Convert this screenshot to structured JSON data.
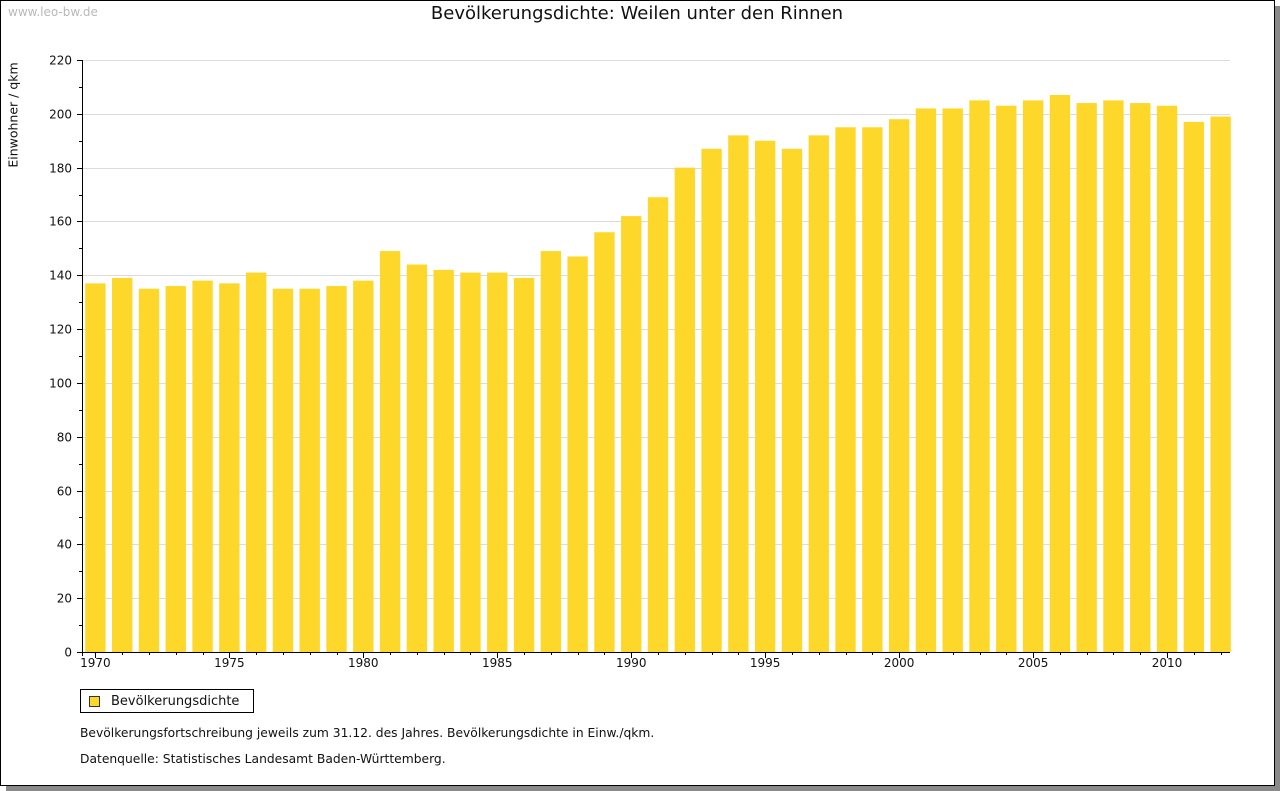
{
  "source_watermark": "www.leo-bw.de",
  "chart_data": {
    "type": "bar",
    "title": "Bevölkerungsdichte: Weilen unter den Rinnen",
    "ylabel": "Einwohner / qkm",
    "xlabel": "",
    "ylim": [
      0,
      220
    ],
    "y_ticks": [
      0,
      20,
      40,
      60,
      80,
      100,
      120,
      140,
      160,
      180,
      200,
      220
    ],
    "x_tick_labels": [
      "1970",
      "1975",
      "1980",
      "1985",
      "1990",
      "1995",
      "2000",
      "2005",
      "2010"
    ],
    "grid": true,
    "legend_position": "bottom-left",
    "categories": [
      1970,
      1971,
      1972,
      1973,
      1974,
      1975,
      1976,
      1977,
      1978,
      1979,
      1980,
      1981,
      1982,
      1983,
      1984,
      1985,
      1986,
      1987,
      1988,
      1989,
      1990,
      1991,
      1992,
      1993,
      1994,
      1995,
      1996,
      1997,
      1998,
      1999,
      2000,
      2001,
      2002,
      2003,
      2004,
      2005,
      2006,
      2007,
      2008,
      2009,
      2010,
      2011,
      2012
    ],
    "series": [
      {
        "name": "Bevölkerungsdichte",
        "color": "#fdd82b",
        "values": [
          137,
          139,
          135,
          136,
          138,
          137,
          141,
          135,
          135,
          136,
          138,
          149,
          144,
          142,
          141,
          141,
          139,
          149,
          147,
          156,
          162,
          169,
          180,
          187,
          192,
          190,
          187,
          192,
          195,
          195,
          198,
          202,
          202,
          205,
          203,
          205,
          207,
          204,
          205,
          204,
          203,
          197,
          199
        ]
      }
    ]
  },
  "notes": {
    "line1": "Bevölkerungsfortschreibung jeweils zum 31.12. des Jahres. Bevölkerungsdichte in Einw./qkm.",
    "line2": "Datenquelle: Statistisches Landesamt Baden-Württemberg."
  }
}
